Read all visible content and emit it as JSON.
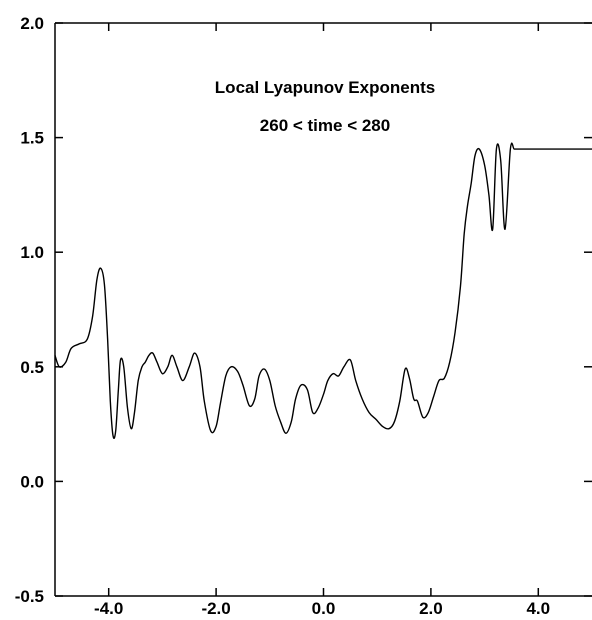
{
  "chart_data": {
    "type": "line",
    "title": "Local Lyapunov Exponents",
    "subtitle": "260 < time < 280",
    "xlabel": "",
    "ylabel": "",
    "xlim": [
      -5.0,
      5.0
    ],
    "ylim": [
      -0.5,
      2.0
    ],
    "x_ticks": [
      -4.0,
      -2.0,
      0.0,
      2.0,
      4.0
    ],
    "x_tick_labels": [
      "-4.0",
      "-2.0",
      "0.0",
      "2.0",
      "4.0"
    ],
    "y_ticks": [
      -0.5,
      0.0,
      0.5,
      1.0,
      1.5,
      2.0
    ],
    "y_tick_labels": [
      "-0.5",
      "0.0",
      "0.5",
      "1.0",
      "1.5",
      "2.0"
    ],
    "grid": false,
    "series": [
      {
        "color": "#000000",
        "x": [
          -5.0,
          -4.92,
          -4.8,
          -4.7,
          -4.55,
          -4.4,
          -4.3,
          -4.22,
          -4.15,
          -4.08,
          -4.02,
          -3.97,
          -3.92,
          -3.87,
          -3.82,
          -3.78,
          -3.72,
          -3.65,
          -3.58,
          -3.52,
          -3.45,
          -3.38,
          -3.32,
          -3.25,
          -3.18,
          -3.1,
          -3.0,
          -2.9,
          -2.82,
          -2.73,
          -2.62,
          -2.5,
          -2.4,
          -2.3,
          -2.22,
          -2.1,
          -2.0,
          -1.92,
          -1.82,
          -1.72,
          -1.6,
          -1.5,
          -1.38,
          -1.28,
          -1.2,
          -1.1,
          -1.0,
          -0.9,
          -0.8,
          -0.7,
          -0.6,
          -0.52,
          -0.42,
          -0.3,
          -0.2,
          -0.1,
          0.0,
          0.08,
          0.18,
          0.28,
          0.38,
          0.5,
          0.6,
          0.72,
          0.85,
          0.98,
          1.1,
          1.22,
          1.32,
          1.42,
          1.52,
          1.6,
          1.68,
          1.75,
          1.85,
          1.95,
          2.05,
          2.15,
          2.25,
          2.35,
          2.45,
          2.55,
          2.62,
          2.68,
          2.75,
          2.82,
          2.9,
          3.0,
          3.08,
          3.15,
          3.22,
          3.3,
          3.38,
          3.48,
          3.55,
          3.62,
          3.7,
          3.78,
          3.86,
          3.95,
          4.05,
          4.15,
          4.25,
          4.35,
          4.45,
          4.55,
          4.65,
          4.72,
          4.78,
          4.83,
          4.88,
          4.94,
          5.0
        ],
        "y": [
          0.55,
          0.5,
          0.52,
          0.58,
          0.6,
          0.62,
          0.72,
          0.88,
          0.93,
          0.86,
          0.62,
          0.35,
          0.2,
          0.22,
          0.4,
          0.53,
          0.5,
          0.32,
          0.23,
          0.3,
          0.44,
          0.5,
          0.52,
          0.55,
          0.56,
          0.52,
          0.47,
          0.5,
          0.55,
          0.5,
          0.44,
          0.5,
          0.56,
          0.5,
          0.35,
          0.22,
          0.24,
          0.34,
          0.46,
          0.5,
          0.48,
          0.42,
          0.33,
          0.36,
          0.46,
          0.49,
          0.44,
          0.33,
          0.26,
          0.21,
          0.26,
          0.36,
          0.42,
          0.4,
          0.3,
          0.32,
          0.38,
          0.44,
          0.47,
          0.46,
          0.5,
          0.53,
          0.44,
          0.36,
          0.3,
          0.27,
          0.24,
          0.23,
          0.26,
          0.35,
          0.49,
          0.45,
          0.36,
          0.35,
          0.28,
          0.3,
          0.37,
          0.44,
          0.45,
          0.52,
          0.65,
          0.85,
          1.08,
          1.2,
          1.3,
          1.42,
          1.45,
          1.38,
          1.25,
          1.1,
          1.45,
          1.4,
          1.1,
          1.45,
          1.45,
          1.45,
          1.45,
          1.45,
          1.45,
          1.45,
          1.45,
          1.45,
          1.45,
          1.45,
          1.45,
          1.45,
          1.45,
          1.45,
          1.45,
          1.45,
          1.45,
          1.45,
          1.45
        ]
      }
    ]
  }
}
